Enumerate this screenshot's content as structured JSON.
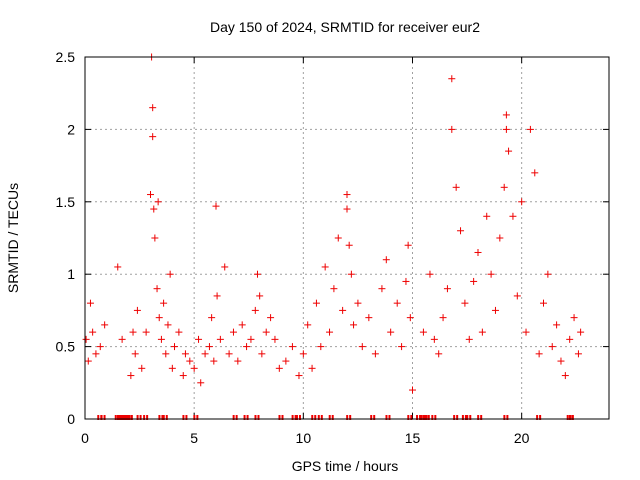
{
  "chart_data": {
    "type": "scatter",
    "title": "Day 150 of 2024, SRMTID for receiver eur2",
    "xlabel": "GPS time / hours",
    "ylabel": "SRMTID / TECUs",
    "xlim": [
      0,
      24
    ],
    "ylim": [
      0,
      2.5
    ],
    "xticks": [
      0,
      5,
      10,
      15,
      20
    ],
    "yticks": [
      0,
      0.5,
      1,
      1.5,
      2,
      2.5
    ],
    "ytick_labels": [
      "0",
      "0.5",
      "1",
      "1.5",
      "2",
      "2.5"
    ],
    "grid": true,
    "marker": "+",
    "color": "#ee0000",
    "series": [
      {
        "name": "SRMTID",
        "x": [
          0.05,
          0.15,
          0.25,
          0.35,
          0.5,
          0.7,
          0.9,
          1.5,
          1.7,
          2.1,
          2.2,
          2.3,
          2.4,
          2.6,
          2.8,
          3.0,
          3.05,
          3.1,
          3.1,
          3.15,
          3.2,
          3.3,
          3.35,
          3.4,
          3.5,
          3.6,
          3.7,
          3.8,
          3.9,
          4.0,
          4.1,
          4.3,
          4.5,
          4.6,
          4.8,
          5.0,
          5.2,
          5.3,
          5.5,
          5.7,
          5.8,
          5.9,
          6.0,
          6.05,
          6.2,
          6.4,
          6.6,
          6.8,
          7.0,
          7.2,
          7.4,
          7.6,
          7.8,
          7.9,
          8.0,
          8.1,
          8.3,
          8.5,
          8.7,
          8.9,
          9.2,
          9.5,
          9.8,
          10.0,
          10.2,
          10.4,
          10.6,
          10.8,
          11.0,
          11.2,
          11.4,
          11.6,
          11.8,
          12.0,
          12.0,
          12.1,
          12.2,
          12.3,
          12.5,
          12.7,
          13.0,
          13.3,
          13.6,
          13.8,
          14.0,
          14.3,
          14.5,
          14.7,
          14.8,
          14.9,
          15.0,
          15.5,
          15.8,
          16.0,
          16.2,
          16.4,
          16.6,
          16.8,
          16.8,
          17.0,
          17.2,
          17.4,
          17.6,
          17.8,
          18.0,
          18.2,
          18.4,
          18.6,
          18.8,
          19.0,
          19.2,
          19.3,
          19.3,
          19.4,
          19.6,
          19.8,
          20.0,
          20.2,
          20.4,
          20.6,
          20.8,
          21.0,
          21.2,
          21.4,
          21.6,
          21.8,
          22.0,
          22.2,
          22.4,
          22.6,
          22.7
        ],
        "y": [
          0.55,
          0.4,
          0.8,
          0.6,
          0.45,
          0.5,
          0.65,
          1.05,
          0.55,
          0.3,
          0.6,
          0.45,
          0.75,
          0.35,
          0.6,
          1.55,
          2.5,
          2.15,
          1.95,
          1.45,
          1.25,
          0.9,
          1.5,
          0.7,
          0.55,
          0.8,
          0.45,
          0.65,
          1.0,
          0.35,
          0.5,
          0.6,
          0.3,
          0.45,
          0.4,
          0.35,
          0.55,
          0.25,
          0.45,
          0.5,
          0.7,
          0.4,
          1.47,
          0.85,
          0.55,
          1.05,
          0.45,
          0.6,
          0.4,
          0.65,
          0.5,
          0.55,
          0.75,
          1.0,
          0.85,
          0.45,
          0.6,
          0.7,
          0.55,
          0.35,
          0.4,
          0.5,
          0.3,
          0.45,
          0.65,
          0.35,
          0.8,
          0.5,
          1.05,
          0.6,
          0.9,
          1.25,
          0.75,
          1.45,
          1.55,
          1.2,
          1.0,
          0.65,
          0.8,
          0.5,
          0.7,
          0.45,
          0.9,
          1.1,
          0.6,
          0.8,
          0.5,
          0.95,
          1.2,
          0.7,
          0.2,
          0.6,
          1.0,
          0.55,
          0.45,
          0.7,
          0.9,
          2.35,
          2.0,
          1.6,
          1.3,
          0.8,
          0.55,
          0.95,
          1.15,
          0.6,
          1.4,
          1.0,
          0.75,
          1.25,
          1.6,
          2.1,
          2.0,
          1.85,
          1.4,
          0.85,
          1.5,
          0.6,
          2.0,
          1.7,
          0.45,
          0.8,
          1.0,
          0.5,
          0.65,
          0.4,
          0.3,
          0.55,
          0.7,
          0.45,
          0.6
        ],
        "y_zero_x": [
          0.7,
          0.85,
          1.5,
          1.6,
          1.7,
          1.8,
          1.9,
          2.0,
          2.1,
          2.5,
          2.8,
          3.5,
          3.7,
          4.6,
          5.1,
          6.9,
          7.4,
          7.9,
          9.0,
          9.6,
          9.8,
          10.5,
          10.8,
          11.3,
          12.1,
          13.2,
          13.9,
          14.9,
          15.3,
          15.5,
          15.6,
          15.7,
          16.0,
          17.0,
          17.4,
          17.6,
          18.1,
          19.3,
          20.8,
          22.2,
          22.3
        ]
      }
    ]
  }
}
